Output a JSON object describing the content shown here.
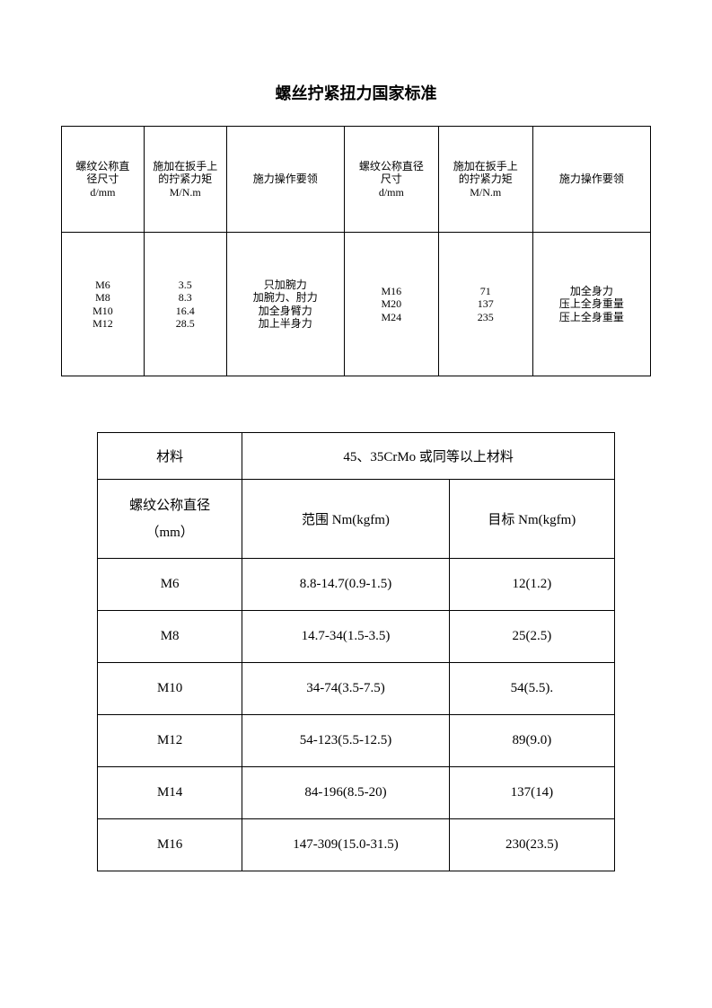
{
  "title": "螺丝拧紧扭力国家标准",
  "table1": {
    "headers": {
      "col1_line1": "螺纹公称直",
      "col1_line2": "径尺寸",
      "col1_line3": "d/mm",
      "col2_line1": "施加在扳手上",
      "col2_line2": "的拧紧力矩",
      "col2_line3": "M/N.m",
      "col3": "施力操作要领",
      "col4_line1": "螺纹公称直径",
      "col4_line2": "尺寸",
      "col4_line3": "d/mm",
      "col5_line1": "施加在扳手上",
      "col5_line2": "的拧紧力矩",
      "col5_line3": "M/N.m",
      "col6": "施力操作要领"
    },
    "body": {
      "c1": [
        "M6",
        "M8",
        "M10",
        "M12"
      ],
      "c2": [
        "3.5",
        "8.3",
        "16.4",
        "28.5"
      ],
      "c3": [
        "只加腕力",
        "加腕力、肘力",
        "加全身臂力",
        "加上半身力"
      ],
      "c4": [
        "M16",
        "M20",
        "M24"
      ],
      "c5": [
        "71",
        "137",
        "235"
      ],
      "c6": [
        "加全身力",
        "压上全身重量",
        "压上全身重量"
      ]
    },
    "col_widths": [
      "14%",
      "14%",
      "20%",
      "16%",
      "16%",
      "20%"
    ]
  },
  "table2": {
    "material_label": "材料",
    "material_value": "45、35CrMo 或同等以上材料",
    "header_col1_line1": "螺纹公称直径",
    "header_col1_line2": "（mm）",
    "header_col2": "范围 Nm(kgfm)",
    "header_col3": "目标 Nm(kgfm)",
    "rows": [
      {
        "c1": "M6",
        "c2": "8.8-14.7(0.9-1.5)",
        "c3": "12(1.2)"
      },
      {
        "c1": "M8",
        "c2": "14.7-34(1.5-3.5)",
        "c3": "25(2.5)"
      },
      {
        "c1": "M10",
        "c2": "34-74(3.5-7.5)",
        "c3": "54(5.5)."
      },
      {
        "c1": "M12",
        "c2": "54-123(5.5-12.5)",
        "c3": "89(9.0)"
      },
      {
        "c1": "M14",
        "c2": "84-196(8.5-20)",
        "c3": "137(14)"
      },
      {
        "c1": "M16",
        "c2": "147-309(15.0-31.5)",
        "c3": "230(23.5)"
      }
    ],
    "col_widths": [
      "28%",
      "40%",
      "32%"
    ]
  },
  "colors": {
    "text": "#000000",
    "background": "#ffffff",
    "border": "#000000"
  }
}
